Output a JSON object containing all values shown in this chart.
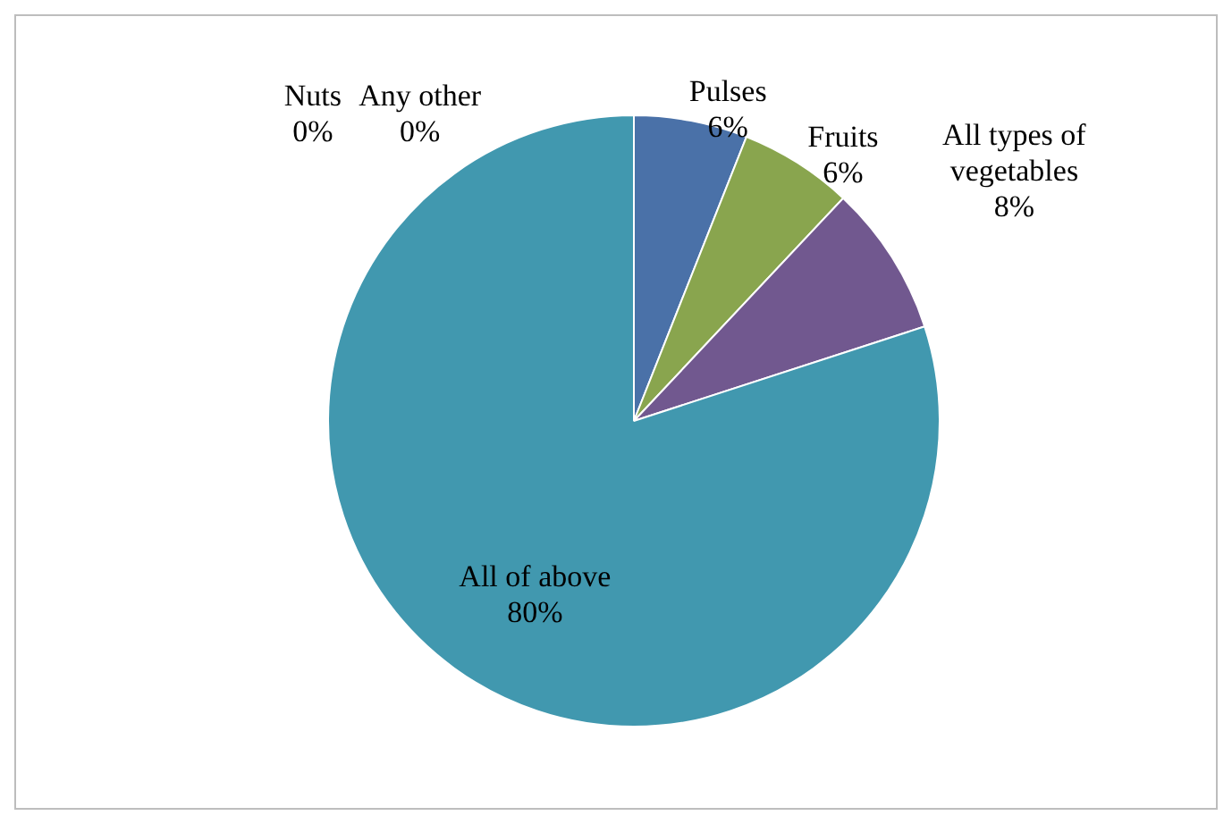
{
  "chart_data": {
    "type": "pie",
    "categories": [
      "Pulses",
      "Fruits",
      "All types of vegetables",
      "All of above",
      "Nuts",
      "Any other"
    ],
    "values": [
      6,
      6,
      8,
      80,
      0,
      0
    ],
    "colors": [
      "#4a71a8",
      "#89a54e",
      "#71588f",
      "#4198af",
      "#c0504d",
      "#f79646"
    ],
    "value_labels": [
      "6%",
      "6%",
      "8%",
      "80%",
      "0%",
      "0%"
    ],
    "legend": false
  }
}
